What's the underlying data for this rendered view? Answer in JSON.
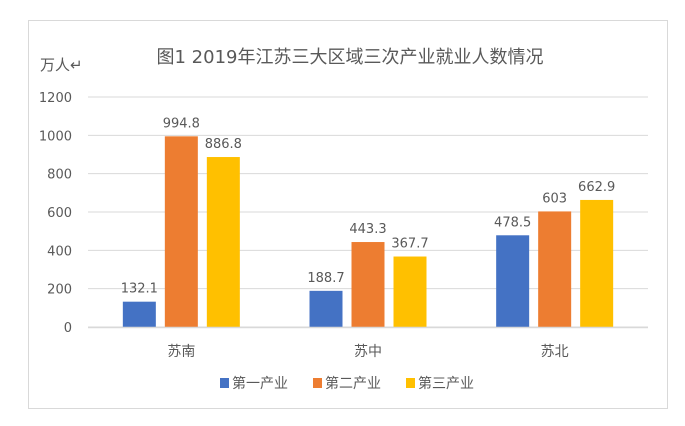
{
  "chart_data": {
    "type": "bar",
    "title": "图1 2019年江苏三大区域三次产业就业人数情况",
    "ylabel": "万人↵",
    "xlabel": "",
    "categories": [
      "苏南",
      "苏中",
      "苏北"
    ],
    "series": [
      {
        "name": "第一产业",
        "color": "#4472C4",
        "values": [
          132.1,
          188.7,
          478.5
        ],
        "labels": [
          "132.1",
          "188.7",
          "478.5"
        ]
      },
      {
        "name": "第二产业",
        "color": "#ED7D31",
        "values": [
          994.8,
          443.3,
          603
        ],
        "labels": [
          "994.8",
          "443.3",
          "603"
        ]
      },
      {
        "name": "第三产业",
        "color": "#FFC000",
        "values": [
          886.8,
          367.7,
          662.9
        ],
        "labels": [
          "886.8",
          "367.7",
          "662.9"
        ]
      }
    ],
    "ylim": [
      0,
      1200
    ],
    "yticks": [
      "0",
      "200",
      "400",
      "600",
      "800",
      "1000",
      "1200"
    ],
    "grid": true,
    "legend": "bottom"
  }
}
